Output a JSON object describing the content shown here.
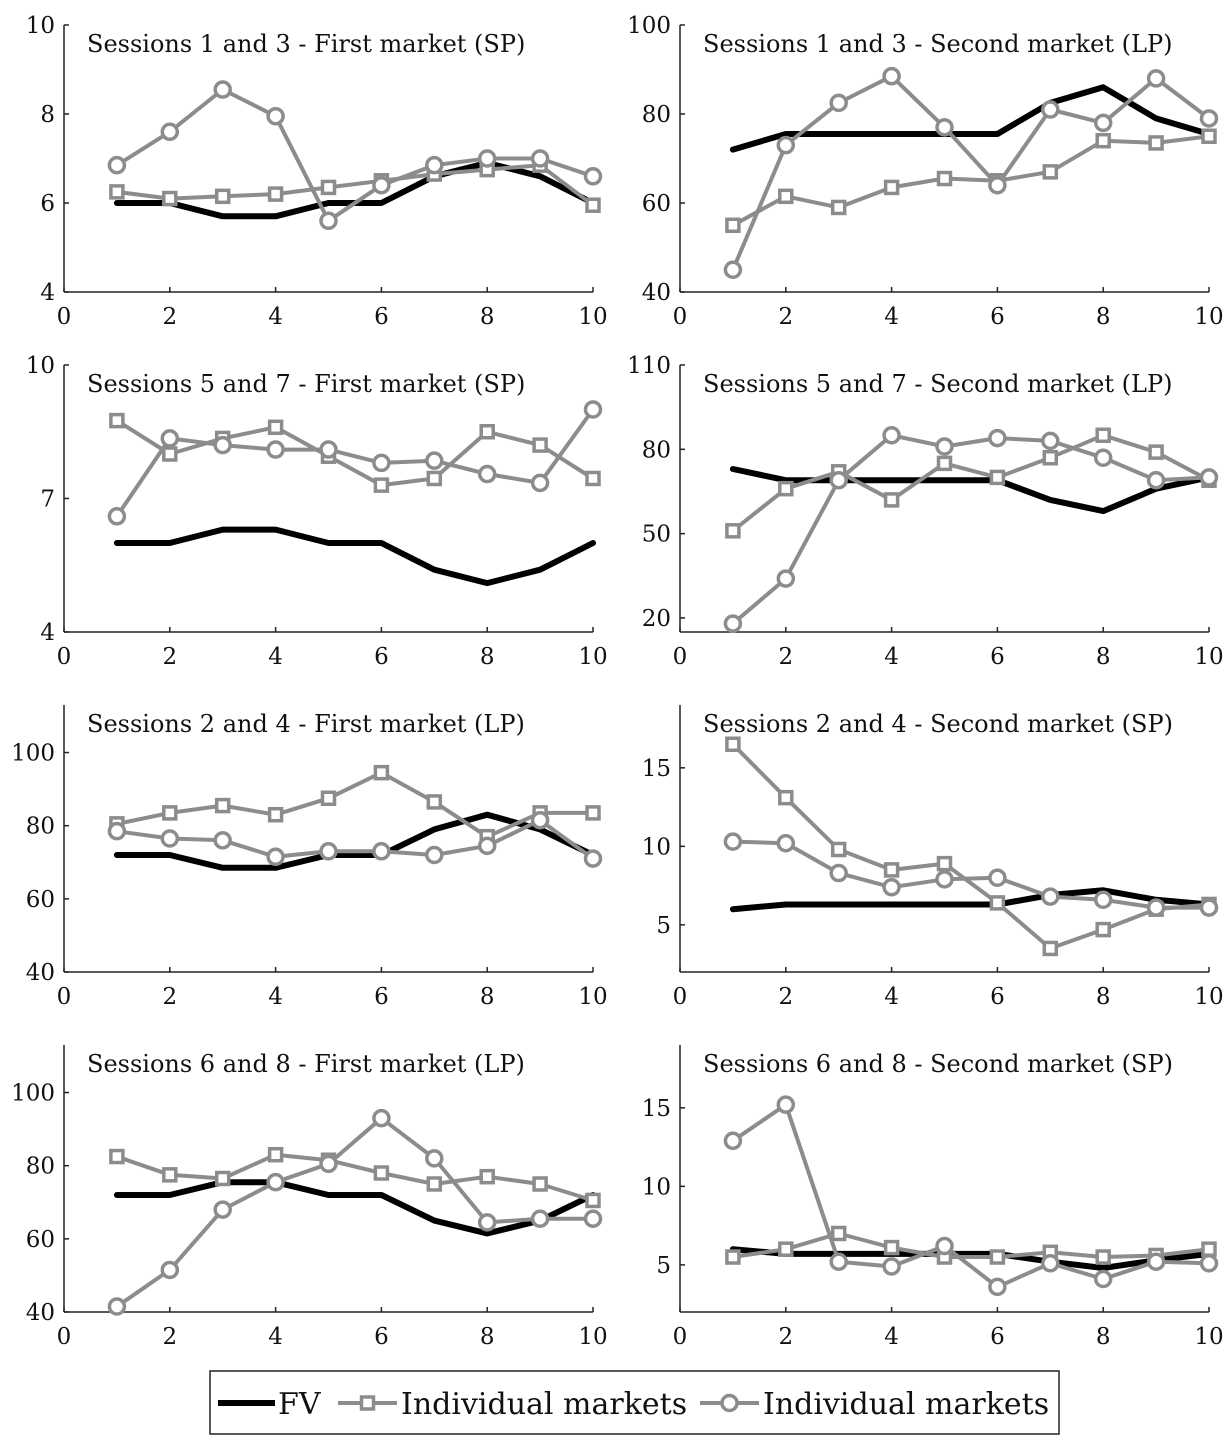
{
  "colors": {
    "fv": "#000000",
    "markets": "#8c8c8c",
    "axis": "#222222"
  },
  "legend": {
    "position": "bottom-center",
    "entries": [
      {
        "label": "FV",
        "marker": "none",
        "color": "#000000"
      },
      {
        "label": "Individual markets",
        "marker": "square",
        "color": "#8c8c8c"
      },
      {
        "label": "Individual markets",
        "marker": "circle",
        "color": "#8c8c8c"
      }
    ]
  },
  "chart_data": [
    {
      "type": "line",
      "title": "Sessions 1 and 3 - First market (SP)",
      "xlim": [
        0,
        10
      ],
      "ylim": [
        4,
        10
      ],
      "xticks": [
        0,
        2,
        4,
        6,
        8,
        10
      ],
      "yticks": [
        4,
        6,
        8,
        10
      ],
      "x": [
        1,
        2,
        3,
        4,
        5,
        6,
        7,
        8,
        9,
        10
      ],
      "series": [
        {
          "marker": "none",
          "values": [
            6.0,
            6.0,
            5.7,
            5.7,
            6.0,
            6.0,
            6.6,
            6.9,
            6.6,
            6.0
          ]
        },
        {
          "marker": "square",
          "values": [
            6.25,
            6.1,
            6.15,
            6.2,
            6.35,
            6.5,
            6.65,
            6.75,
            6.85,
            5.95
          ]
        },
        {
          "marker": "circle",
          "values": [
            6.85,
            7.6,
            8.55,
            7.95,
            5.6,
            6.4,
            6.85,
            7.0,
            7.0,
            6.6
          ]
        }
      ]
    },
    {
      "type": "line",
      "title": "Sessions 1 and 3 - Second market (LP)",
      "xlim": [
        0,
        10
      ],
      "ylim": [
        40,
        100
      ],
      "xticks": [
        0,
        2,
        4,
        6,
        8,
        10
      ],
      "yticks": [
        40,
        60,
        80,
        100
      ],
      "x": [
        1,
        2,
        3,
        4,
        5,
        6,
        7,
        8,
        9,
        10
      ],
      "series": [
        {
          "marker": "none",
          "values": [
            72,
            75.5,
            75.5,
            75.5,
            75.5,
            75.5,
            82.5,
            86,
            79,
            75.5
          ]
        },
        {
          "marker": "square",
          "values": [
            55,
            61.5,
            59,
            63.5,
            65.5,
            65,
            67,
            74,
            73.5,
            75
          ]
        },
        {
          "marker": "circle",
          "values": [
            45,
            73,
            82.5,
            88.5,
            77,
            64,
            81,
            78,
            88,
            79
          ]
        }
      ]
    },
    {
      "type": "line",
      "title": "Sessions 5 and 7 - First market (SP)",
      "xlim": [
        0,
        10
      ],
      "ylim": [
        4,
        10
      ],
      "xticks": [
        0,
        2,
        4,
        6,
        8,
        10
      ],
      "yticks": [
        4,
        7,
        10
      ],
      "x": [
        1,
        2,
        3,
        4,
        5,
        6,
        7,
        8,
        9,
        10
      ],
      "series": [
        {
          "marker": "none",
          "values": [
            6.0,
            6.0,
            6.3,
            6.3,
            6.0,
            6.0,
            5.4,
            5.1,
            5.4,
            6.0
          ]
        },
        {
          "marker": "square",
          "values": [
            8.75,
            8.0,
            8.35,
            8.6,
            7.95,
            7.3,
            7.45,
            8.5,
            8.2,
            7.45
          ]
        },
        {
          "marker": "circle",
          "values": [
            6.6,
            8.35,
            8.2,
            8.1,
            8.1,
            7.8,
            7.85,
            7.55,
            7.35,
            9.0
          ]
        }
      ]
    },
    {
      "type": "line",
      "title": "Sessions 5 and 7 - Second market (LP)",
      "xlim": [
        0,
        10
      ],
      "ylim": [
        15,
        110
      ],
      "xticks": [
        0,
        2,
        4,
        6,
        8,
        10
      ],
      "yticks": [
        20,
        50,
        80,
        110
      ],
      "x": [
        1,
        2,
        3,
        4,
        5,
        6,
        7,
        8,
        9,
        10
      ],
      "series": [
        {
          "marker": "none",
          "values": [
            73,
            69,
            69,
            69,
            69,
            69,
            62,
            58,
            66,
            70
          ]
        },
        {
          "marker": "square",
          "values": [
            51,
            66,
            72,
            62,
            75,
            70,
            77,
            85,
            79,
            69
          ]
        },
        {
          "marker": "circle",
          "values": [
            18,
            34,
            69,
            85,
            81,
            84,
            83,
            77,
            69,
            70
          ]
        }
      ]
    },
    {
      "type": "line",
      "title": "Sessions 2 and 4 - First market (LP)",
      "xlim": [
        0,
        10
      ],
      "ylim": [
        40,
        113
      ],
      "xticks": [
        0,
        2,
        4,
        6,
        8,
        10
      ],
      "yticks": [
        40,
        60,
        80,
        100
      ],
      "x": [
        1,
        2,
        3,
        4,
        5,
        6,
        7,
        8,
        9,
        10
      ],
      "series": [
        {
          "marker": "none",
          "values": [
            72,
            72,
            68.5,
            68.5,
            72,
            72,
            79,
            83,
            79,
            72
          ]
        },
        {
          "marker": "square",
          "values": [
            80.5,
            83.5,
            85.5,
            83,
            87.5,
            94.5,
            86.5,
            77,
            83.5,
            83.5
          ]
        },
        {
          "marker": "circle",
          "values": [
            78.5,
            76.5,
            76,
            71.5,
            73,
            73,
            72,
            74.5,
            81.5,
            71
          ]
        }
      ]
    },
    {
      "type": "line",
      "title": "Sessions 2 and 4 - Second market (SP)",
      "xlim": [
        0,
        10
      ],
      "ylim": [
        2,
        19
      ],
      "xticks": [
        0,
        2,
        4,
        6,
        8,
        10
      ],
      "yticks": [
        5,
        10,
        15
      ],
      "x": [
        1,
        2,
        3,
        4,
        5,
        6,
        7,
        8,
        9,
        10
      ],
      "series": [
        {
          "marker": "none",
          "values": [
            6.0,
            6.3,
            6.3,
            6.3,
            6.3,
            6.3,
            6.9,
            7.2,
            6.6,
            6.3
          ]
        },
        {
          "marker": "square",
          "values": [
            16.5,
            13.1,
            9.8,
            8.5,
            8.9,
            6.4,
            3.5,
            4.7,
            6.0,
            6.3
          ]
        },
        {
          "marker": "circle",
          "values": [
            10.3,
            10.2,
            8.3,
            7.4,
            7.9,
            8.0,
            6.8,
            6.6,
            6.1,
            6.1
          ]
        }
      ]
    },
    {
      "type": "line",
      "title": "Sessions 6 and 8 - First market (LP)",
      "xlim": [
        0,
        10
      ],
      "ylim": [
        40,
        113
      ],
      "xticks": [
        0,
        2,
        4,
        6,
        8,
        10
      ],
      "yticks": [
        40,
        60,
        80,
        100
      ],
      "x": [
        1,
        2,
        3,
        4,
        5,
        6,
        7,
        8,
        9,
        10
      ],
      "series": [
        {
          "marker": "none",
          "values": [
            72,
            72,
            75.5,
            75.5,
            72,
            72,
            65,
            61.5,
            65,
            72
          ]
        },
        {
          "marker": "square",
          "values": [
            82.5,
            77.5,
            76.5,
            83,
            81.5,
            78,
            75,
            77,
            75,
            70.5
          ]
        },
        {
          "marker": "circle",
          "values": [
            41.5,
            51.5,
            68,
            75.5,
            80.5,
            93,
            82,
            64.5,
            65.5,
            65.5
          ]
        }
      ]
    },
    {
      "type": "line",
      "title": "Sessions 6 and 8 - Second market (SP)",
      "xlim": [
        0,
        10
      ],
      "ylim": [
        2,
        19
      ],
      "xticks": [
        0,
        2,
        4,
        6,
        8,
        10
      ],
      "yticks": [
        5,
        10,
        15
      ],
      "x": [
        1,
        2,
        3,
        4,
        5,
        6,
        7,
        8,
        9,
        10
      ],
      "series": [
        {
          "marker": "none",
          "values": [
            6.0,
            5.7,
            5.7,
            5.7,
            5.7,
            5.7,
            5.2,
            4.8,
            5.3,
            5.7
          ]
        },
        {
          "marker": "square",
          "values": [
            5.5,
            6.0,
            7.0,
            6.1,
            5.5,
            5.5,
            5.8,
            5.5,
            5.6,
            6.0
          ]
        },
        {
          "marker": "circle",
          "values": [
            12.9,
            15.2,
            5.2,
            4.9,
            6.2,
            3.6,
            5.1,
            4.1,
            5.2,
            5.1
          ]
        }
      ]
    }
  ]
}
